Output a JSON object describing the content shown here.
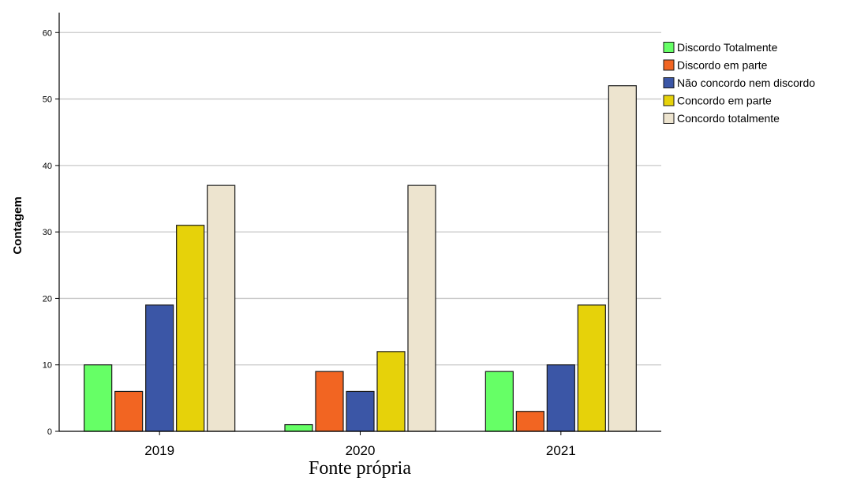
{
  "chart_data": {
    "type": "bar",
    "title": "",
    "xlabel": "",
    "ylabel": "Contagem",
    "ylim": [
      0,
      63
    ],
    "yticks": [
      0,
      10,
      20,
      30,
      40,
      50,
      60
    ],
    "grid": true,
    "legend_position": "top-right",
    "categories": [
      "2019",
      "2020",
      "2021"
    ],
    "series": [
      {
        "name": "Discordo Totalmente",
        "color": "#66ff66",
        "values": [
          10,
          1,
          9
        ]
      },
      {
        "name": "Discordo em parte",
        "color": "#f26522",
        "values": [
          6,
          9,
          3
        ]
      },
      {
        "name": "Não concordo nem discordo",
        "color": "#3b56a6",
        "values": [
          19,
          6,
          10
        ]
      },
      {
        "name": "Concordo em parte",
        "color": "#e6d20a",
        "values": [
          31,
          12,
          19
        ]
      },
      {
        "name": "Concordo totalmente",
        "color": "#ede4cf",
        "values": [
          37,
          37,
          52
        ]
      }
    ]
  },
  "caption": "Fonte própria"
}
